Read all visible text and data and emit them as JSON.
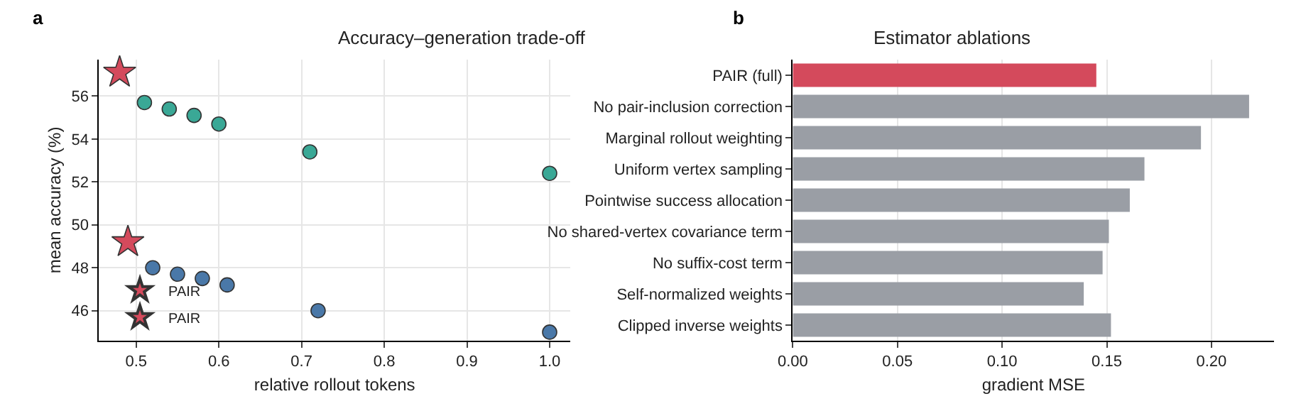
{
  "chart_data": [
    {
      "type": "scatter",
      "title": "Accuracy–generation trade-off",
      "xlabel": "relative rollout tokens",
      "ylabel": "mean accuracy (%)",
      "annotations": [
        "a"
      ],
      "series": [
        {
          "color": "#4a78a8",
          "marker": "circle",
          "x": [
            0.52,
            0.55,
            0.58,
            0.61,
            0.72,
            1.0
          ],
          "values": [
            48.0,
            47.7,
            47.5,
            47.2,
            46.0,
            45.0
          ]
        },
        {
          "name": "PAIR",
          "color": "#d44a5c",
          "marker": "star",
          "x": [
            0.49
          ],
          "values": [
            49.2
          ]
        },
        {
          "color": "#3aa896",
          "marker": "circle",
          "x": [
            0.51,
            0.54,
            0.57,
            0.6,
            0.71,
            1.0
          ],
          "values": [
            55.7,
            55.4,
            55.1,
            54.7,
            53.4,
            52.4
          ]
        },
        {
          "name": "PAIR",
          "color": "#d44a5c",
          "marker": "star",
          "x": [
            0.48
          ],
          "values": [
            57.1
          ]
        }
      ],
      "xlim": [
        0.455,
        1.025
      ],
      "xticks": [
        0.5,
        0.6,
        0.7,
        0.8,
        0.9,
        {
          "value": 1,
          "label": "1.0"
        }
      ],
      "ylim": [
        44.6,
        57.7
      ],
      "yticks": [
        46,
        48,
        50,
        52,
        54,
        56
      ],
      "grid": true,
      "legend": "bottom left"
    },
    {
      "type": "bar",
      "orientation": "horizontal",
      "title": "Estimator ablations",
      "xlabel": "gradient MSE",
      "annotations": [
        "b"
      ],
      "categories": [
        "PAIR (full)",
        "No pair-inclusion correction",
        "Marginal rollout weighting",
        "Uniform vertex sampling",
        "Pointwise success allocation",
        "No shared-vertex covariance term",
        "No suffix-cost term",
        "Self-normalized weights",
        "Clipped inverse weights"
      ],
      "values": [
        0.145,
        0.218,
        0.195,
        0.168,
        0.161,
        0.151,
        0.148,
        0.139,
        0.152
      ],
      "colors": [
        "#d44a5c",
        "#9a9ea5",
        "#9a9ea5",
        "#9a9ea5",
        "#9a9ea5",
        "#9a9ea5",
        "#9a9ea5",
        "#9a9ea5",
        "#9a9ea5"
      ],
      "xlim": [
        0,
        0.23
      ],
      "xticks": [
        {
          "value": 0,
          "label": "0.00"
        },
        {
          "value": 0.05,
          "label": "0.05"
        },
        {
          "value": 0.1,
          "label": "0.10"
        },
        {
          "value": 0.15,
          "label": "0.15"
        },
        {
          "value": 0.2,
          "label": "0.20"
        }
      ],
      "grid": "x"
    }
  ]
}
